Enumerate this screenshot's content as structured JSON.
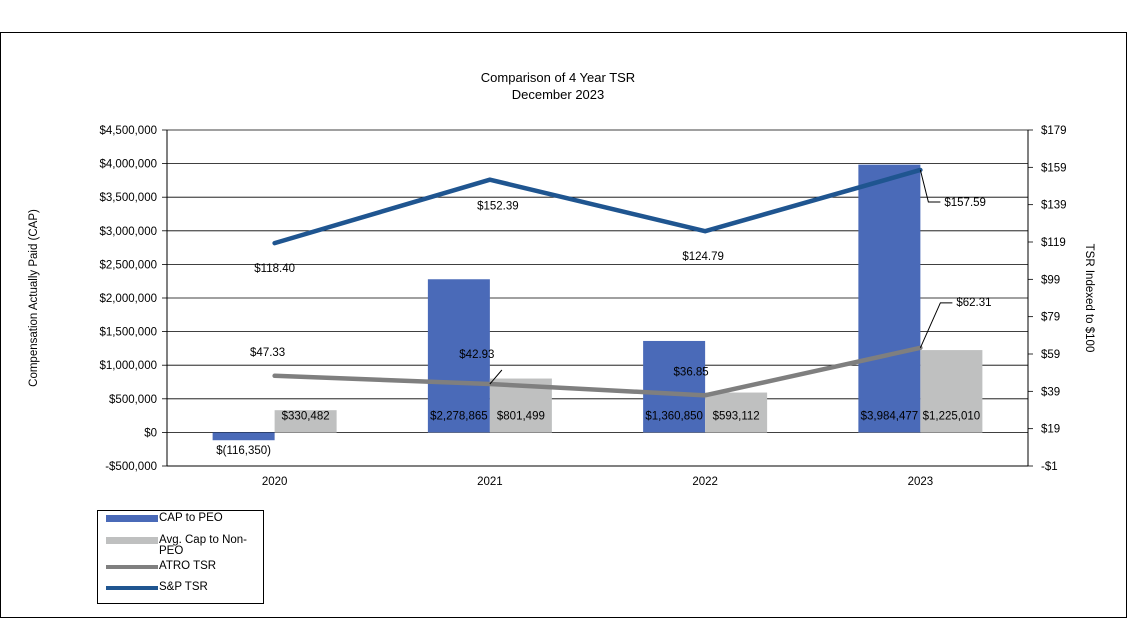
{
  "chart_data": {
    "type": "bar+line",
    "title": "Comparison of 4 Year TSR",
    "subtitle": "December 2023",
    "categories": [
      "2020",
      "2021",
      "2022",
      "2023"
    ],
    "ylabel": "Compensation Actually Paid (CAP)",
    "y2label": "TSR Indexed to $100",
    "ylim": [
      -500000,
      4500000
    ],
    "y_ticks": [
      -500000,
      0,
      500000,
      1000000,
      1500000,
      2000000,
      2500000,
      3000000,
      3500000,
      4000000,
      4500000
    ],
    "y_tick_labels": [
      "-$500,000",
      "$0",
      "$500,000",
      "$1,000,000",
      "$1,500,000",
      "$2,000,000",
      "$2,500,000",
      "$3,000,000",
      "$3,500,000",
      "$4,000,000",
      "$4,500,000"
    ],
    "y2lim": [
      -1,
      179
    ],
    "y2_ticks": [
      -1,
      19,
      39,
      59,
      79,
      99,
      119,
      139,
      159,
      179
    ],
    "y2_tick_labels": [
      "-$1",
      "$19",
      "$39",
      "$59",
      "$79",
      "$99",
      "$119",
      "$139",
      "$159",
      "$179"
    ],
    "bar_series": [
      {
        "name": "CAP to PEO",
        "color": "#4a6ab8",
        "values": [
          -116350,
          2278865,
          1360850,
          3984477
        ],
        "labels": [
          "$(116,350)",
          "$2,278,865",
          "$1,360,850",
          "$3,984,477"
        ]
      },
      {
        "name": "Avg. Cap to Non-PEO",
        "color": "#bfc0c0",
        "values": [
          330482,
          801499,
          593112,
          1225010
        ],
        "labels": [
          "$330,482",
          "$801,499",
          "$593,112",
          "$1,225,010"
        ]
      }
    ],
    "line_series": [
      {
        "name": "ATRO TSR",
        "color": "#7f7f7f",
        "values": [
          47.33,
          42.93,
          36.85,
          62.31
        ],
        "labels": [
          "$47.33",
          "$42.93",
          "$36.85",
          "$62.31"
        ]
      },
      {
        "name": "S&P TSR",
        "color": "#1f5590",
        "values": [
          118.4,
          152.39,
          124.79,
          157.59
        ],
        "labels": [
          "$118.40",
          "$152.39",
          "$124.79",
          "$157.59"
        ]
      }
    ],
    "legend": [
      {
        "label": "CAP to PEO",
        "kind": "bar",
        "color": "#4a6ab8"
      },
      {
        "label": "Avg. Cap to Non-PEO",
        "kind": "bar",
        "color": "#bfc0c0"
      },
      {
        "label": "ATRO TSR",
        "kind": "line",
        "color": "#7f7f7f"
      },
      {
        "label": "S&P TSR",
        "kind": "line",
        "color": "#1f5590"
      }
    ]
  }
}
